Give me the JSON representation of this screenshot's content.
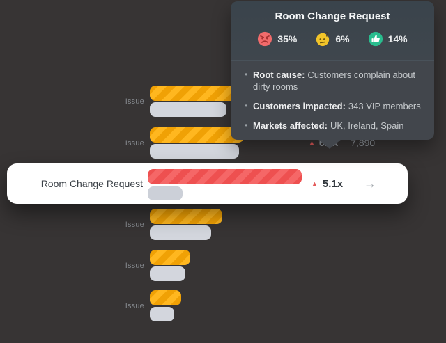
{
  "colors": {
    "background": "#373434",
    "severity_bar": "#F7A80B",
    "severity_bar_stripe": "#F0A105",
    "highlight_bar": "#F25C5C",
    "highlight_bar_stripe": "#EE5050",
    "baseline_bar": "#D3D6DD",
    "tooltip_bg": "#42464C",
    "card_bg": "#FFFFFF",
    "accent_red": "#E45B5B"
  },
  "glyphs": {
    "up_triangle": "▲",
    "arrow_right": "→",
    "bullet": "•"
  },
  "tooltip": {
    "title": "Room Change Request",
    "sentiments": [
      {
        "icon": "angry-face-icon",
        "value": "35%",
        "color": "#F26B6B"
      },
      {
        "icon": "thinking-face-icon",
        "value": "6%",
        "color": "#F2C429"
      },
      {
        "icon": "thumbs-up-icon",
        "value": "14%",
        "color": "#29BD8E"
      }
    ],
    "details": [
      {
        "label": "Root cause:",
        "text": "Customers complain about dirty rooms"
      },
      {
        "label": "Customers impacted:",
        "text": "343 VIP members"
      },
      {
        "label": "Markets affected:",
        "text": "UK, Ireland, Spain"
      }
    ]
  },
  "chart_data": {
    "type": "bar",
    "orientation": "horizontal",
    "note": "severity = striped colored bar, baseline = gray bar; widths in px (no axis shown)",
    "rows": [
      {
        "label": "Issue",
        "severity": 125,
        "baseline": 110,
        "color": "amber"
      },
      {
        "label": "Issue",
        "severity": 135,
        "baseline": 128,
        "color": "amber",
        "multiplier": "6.2x",
        "count": "7,890"
      },
      {
        "label": "Room Change Request",
        "severity": 221,
        "baseline": 50,
        "color": "red",
        "multiplier": "5.1x",
        "highlighted": true
      },
      {
        "label": "Issue",
        "severity": 104,
        "baseline": 88,
        "color": "amber"
      },
      {
        "label": "Issue",
        "severity": 58,
        "baseline": 51,
        "color": "amber"
      },
      {
        "label": "Issue",
        "severity": 45,
        "baseline": 35,
        "color": "amber"
      }
    ]
  }
}
